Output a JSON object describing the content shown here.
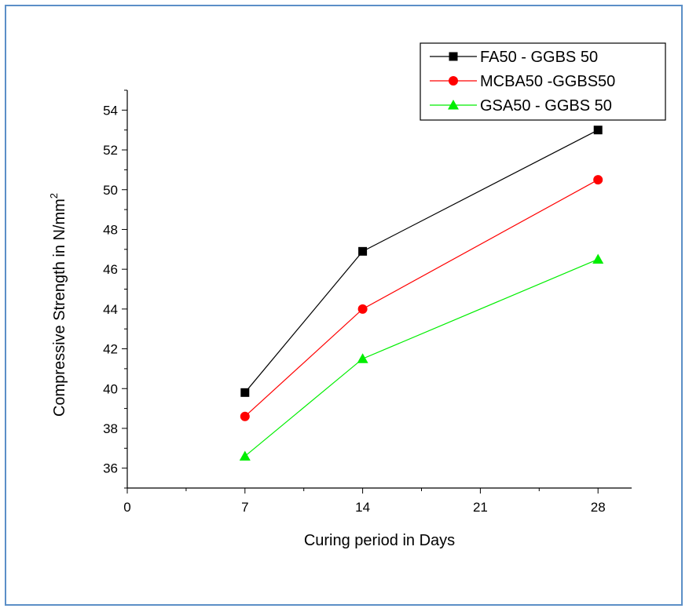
{
  "chart_data": {
    "type": "line",
    "title": "",
    "xlabel": "Curing period in Days",
    "ylabel": "Compressive Strength in N/mm",
    "ylabel_superscript": "2",
    "x_ticks": [
      0,
      7,
      14,
      21,
      28
    ],
    "y_ticks": [
      36,
      38,
      40,
      42,
      44,
      46,
      48,
      50,
      52,
      54
    ],
    "xlim": [
      0,
      30
    ],
    "ylim": [
      35,
      55
    ],
    "grid": false,
    "legend_position": "top-right",
    "x": [
      7,
      14,
      28
    ],
    "series": [
      {
        "name": "FA50 - GGBS 50",
        "values": [
          39.8,
          46.9,
          53.0
        ],
        "color": "#000000",
        "marker": "square"
      },
      {
        "name": "MCBA50 -GGBS50",
        "values": [
          38.6,
          44.0,
          50.5
        ],
        "color": "#ff0000",
        "marker": "circle"
      },
      {
        "name": "GSA50 - GGBS 50",
        "values": [
          36.6,
          41.5,
          46.5
        ],
        "color": "#00ee00",
        "marker": "triangle"
      }
    ]
  }
}
